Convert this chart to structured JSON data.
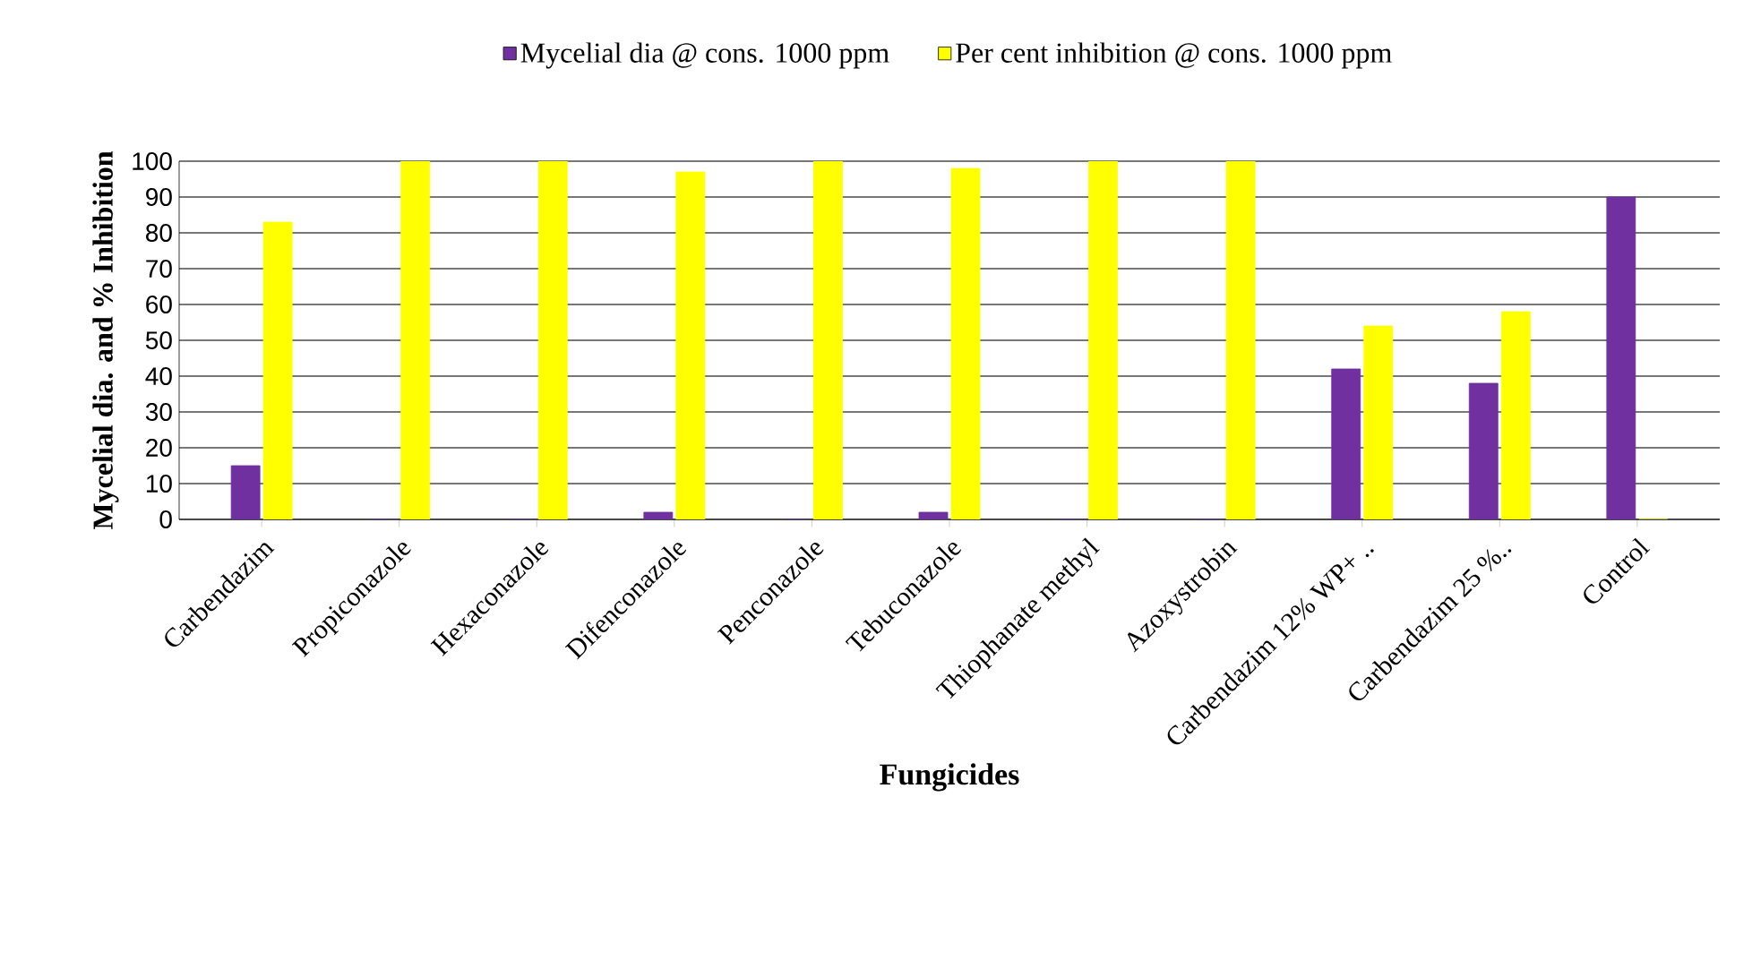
{
  "chart_data": {
    "type": "bar",
    "xlabel": "Fungicides",
    "ylabel": "Mycelial dia. and % Inhibition",
    "categories": [
      "Carbendazim",
      "Propiconazole",
      "Hexaconazole",
      "Difenconazole",
      "Penconazole",
      "Tebuconazole",
      "Thiophanate methyl",
      "Azoxystrobin",
      "Carbendazim 12% WP+ ..",
      "Carbendazim 25 %..",
      "Control"
    ],
    "series": [
      {
        "name": "Mycelial dia @ cons. 1000 ppm",
        "color": "#7030a0",
        "values": [
          15,
          0,
          0,
          2,
          0,
          2,
          0,
          0,
          42,
          38,
          90
        ]
      },
      {
        "name": "Per cent inhibition @ cons. 1000 ppm",
        "color": "#ffff00",
        "values": [
          83,
          100,
          100,
          97,
          100,
          98,
          100,
          100,
          54,
          58,
          0
        ]
      }
    ],
    "ylim": [
      0,
      100
    ],
    "yticks": [
      0,
      10,
      20,
      30,
      40,
      50,
      60,
      70,
      80,
      90,
      100
    ],
    "grid": "y",
    "legend": "top"
  }
}
